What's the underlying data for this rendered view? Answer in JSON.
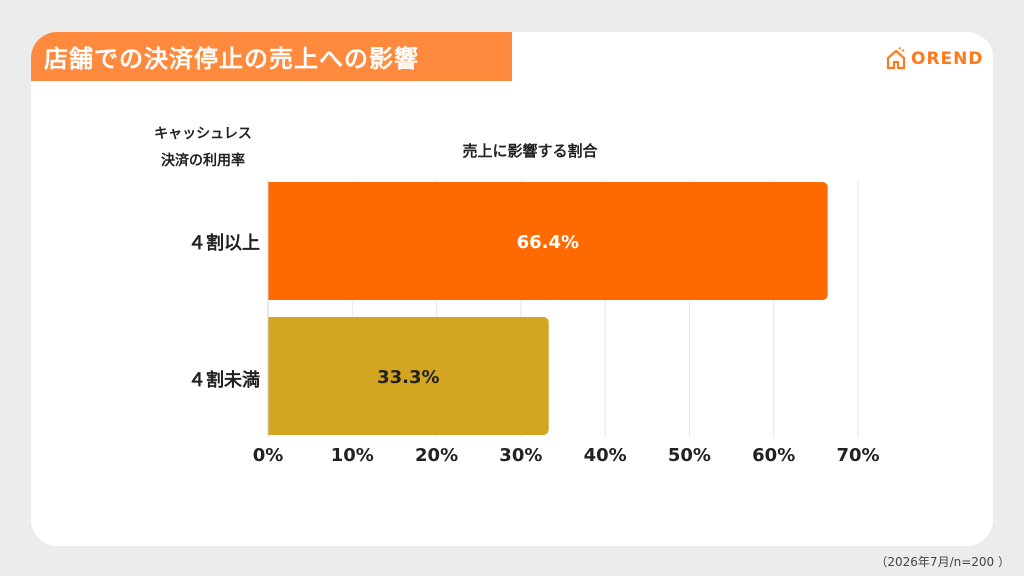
{
  "title": "店舗での決済停止の売上への影響",
  "logo_text": "OREND",
  "row_header_line1": "キャッシュレス",
  "row_header_line2": "決済の利用率",
  "chart_data": {
    "type": "bar",
    "orientation": "horizontal",
    "title": "売上に影響する割合",
    "categories": [
      "４割以上",
      "４割未満"
    ],
    "values": [
      66.4,
      33.3
    ],
    "value_labels": [
      "66.4%",
      "33.3%"
    ],
    "colors": [
      "#ff6a00",
      "#d4a520"
    ],
    "label_colors": [
      "#ffffff",
      "#222222"
    ],
    "xlim": [
      0,
      70
    ],
    "xticks": [
      0,
      10,
      20,
      30,
      40,
      50,
      60,
      70
    ],
    "xtick_labels": [
      "0%",
      "10%",
      "20%",
      "30%",
      "40%",
      "50%",
      "60%",
      "70%"
    ],
    "grid": true
  },
  "source_note": "（2026年7月/n=200 ）",
  "colors": {
    "banner": "#ff8a3d",
    "background": "#ececec",
    "card": "#ffffff",
    "grid": "#e6e6e6"
  }
}
